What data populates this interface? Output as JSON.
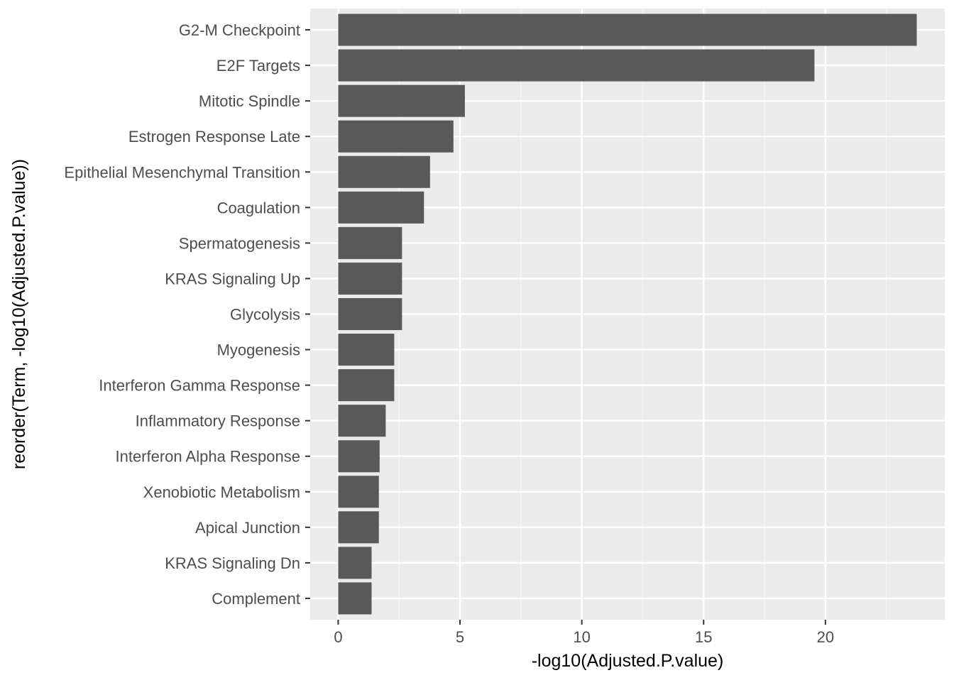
{
  "chart_data": {
    "type": "bar",
    "orientation": "horizontal",
    "xlabel": "-log10(Adjusted.P.value)",
    "ylabel": "reorder(Term, -log10(Adjusted.P.value))",
    "xlim": [
      -1.15,
      24.9
    ],
    "x_ticks": [
      0,
      5,
      10,
      15,
      20
    ],
    "grid": true,
    "categories": [
      "G2-M Checkpoint",
      "E2F Targets",
      "Mitotic Spindle",
      "Estrogen Response Late",
      "Epithelial Mesenchymal Transition",
      "Coagulation",
      "Spermatogenesis",
      "KRAS Signaling Up",
      "Glycolysis",
      "Myogenesis",
      "Interferon Gamma Response",
      "Inflammatory Response",
      "Interferon Alpha Response",
      "Xenobiotic Metabolism",
      "Apical Junction",
      "KRAS Signaling Dn",
      "Complement"
    ],
    "values": [
      23.75,
      19.55,
      5.2,
      4.73,
      3.77,
      3.52,
      2.62,
      2.62,
      2.62,
      2.3,
      2.3,
      1.95,
      1.7,
      1.67,
      1.67,
      1.37,
      1.37
    ],
    "colors": {
      "panel_background": "#ebebeb",
      "grid_major": "#ffffff",
      "grid_minor": "#f5f5f5",
      "bar_fill": "#595959",
      "tick_color": "#333333",
      "tick_label_color": "#4d4d4d",
      "axis_title_color": "#000000"
    }
  }
}
